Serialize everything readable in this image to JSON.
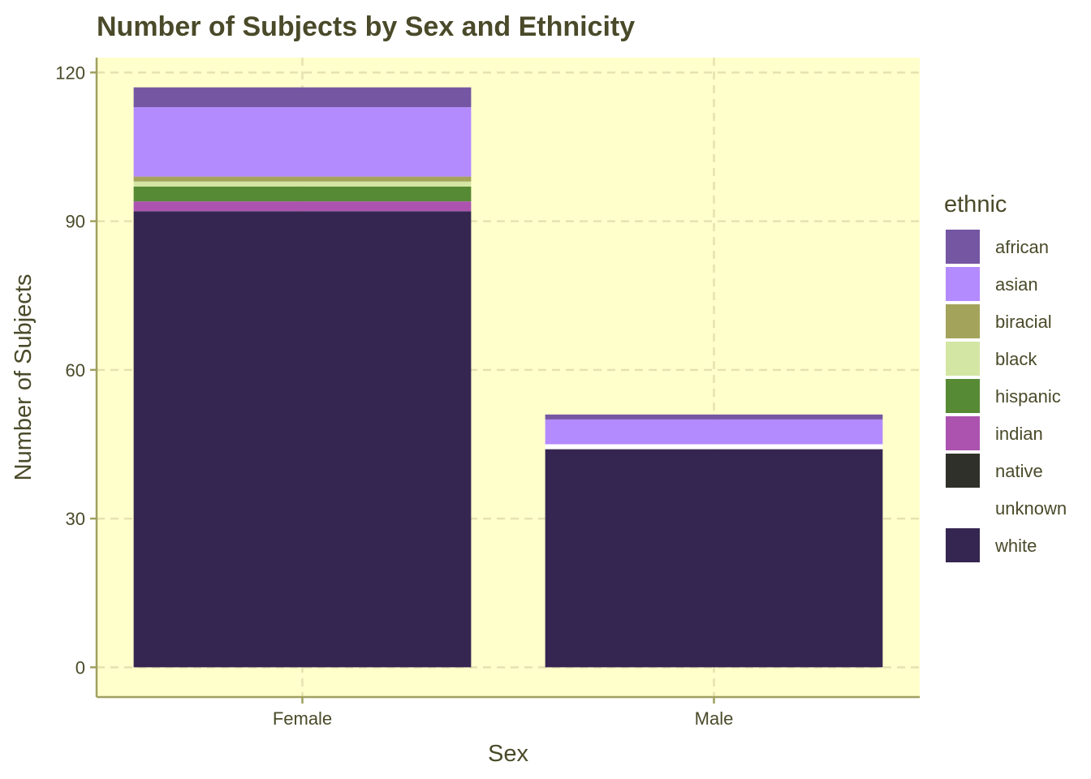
{
  "chart_data": {
    "type": "bar",
    "stacked": true,
    "title": "Number of Subjects by Sex and Ethnicity",
    "xlabel": "Sex",
    "ylabel": "Number of Subjects",
    "categories": [
      "Female",
      "Male"
    ],
    "ylim": [
      -6,
      123
    ],
    "yticks": [
      0,
      30,
      60,
      90,
      120
    ],
    "grid": true,
    "legend_title": "ethnic",
    "legend_position": "right",
    "background_color": "#ffffcc",
    "axis_color": "#a0a060",
    "series": [
      {
        "name": "white",
        "color": "#352651",
        "values": [
          92,
          44
        ]
      },
      {
        "name": "unknown",
        "color": "#ffffff",
        "values": [
          0,
          1
        ]
      },
      {
        "name": "native",
        "color": "#30302a",
        "values": [
          0,
          0
        ]
      },
      {
        "name": "indian",
        "color": "#ac53b0",
        "values": [
          2,
          0
        ]
      },
      {
        "name": "hispanic",
        "color": "#568a34",
        "values": [
          3,
          0
        ]
      },
      {
        "name": "black",
        "color": "#d4e6a3",
        "values": [
          1,
          0
        ]
      },
      {
        "name": "biracial",
        "color": "#a4a35b",
        "values": [
          1,
          0
        ]
      },
      {
        "name": "asian",
        "color": "#b48aff",
        "values": [
          14,
          5
        ]
      },
      {
        "name": "african",
        "color": "#7456a3",
        "values": [
          4,
          1
        ]
      }
    ],
    "legend_order": [
      "african",
      "asian",
      "biracial",
      "black",
      "hispanic",
      "indian",
      "native",
      "unknown",
      "white"
    ]
  }
}
